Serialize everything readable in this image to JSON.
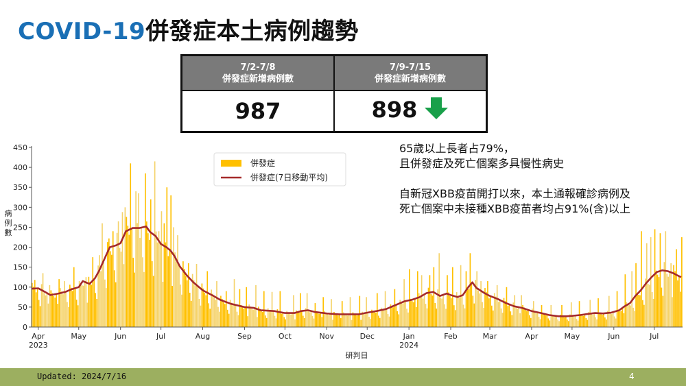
{
  "page": {
    "title_en": "COVID-19",
    "title_zh": "併發症本土病例趨勢"
  },
  "stats_table": {
    "columns": [
      {
        "range": "7/2-7/8",
        "label": "併發症新增病例數",
        "value": "987"
      },
      {
        "range": "7/9-7/15",
        "label": "併發症新增病例數",
        "value": "898",
        "trend": "down-arrow-icon",
        "trend_color": "#19a04a"
      }
    ]
  },
  "notes": {
    "line1": "65歲以上長者占79%，",
    "line2": "且併發症及死亡個案多具慢性病史",
    "line3": "自新冠XBB疫苗開打以來，本土通報確診病例及",
    "line4": "死亡個案中未接種XBB疫苗者均占91%(含)以上"
  },
  "footer": {
    "updated": "Updated: 2024/7/16",
    "page_number": "4"
  },
  "chart_data": {
    "type": "bar",
    "title": "",
    "xlabel": "研判日",
    "ylabel": "病例數",
    "ylim": [
      0,
      450
    ],
    "yticks": [
      0,
      50,
      100,
      150,
      200,
      250,
      300,
      350,
      400,
      450
    ],
    "xticks": [
      {
        "label": "Apr",
        "sub": "2023",
        "day": 5
      },
      {
        "label": "May",
        "sub": "",
        "day": 35
      },
      {
        "label": "Jun",
        "sub": "",
        "day": 66
      },
      {
        "label": "Jul",
        "sub": "",
        "day": 96
      },
      {
        "label": "Aug",
        "sub": "",
        "day": 127
      },
      {
        "label": "Sep",
        "sub": "",
        "day": 158
      },
      {
        "label": "Oct",
        "sub": "",
        "day": 188
      },
      {
        "label": "Nov",
        "sub": "",
        "day": 219
      },
      {
        "label": "Dec",
        "sub": "",
        "day": 249
      },
      {
        "label": "Jan",
        "sub": "2024",
        "day": 280
      },
      {
        "label": "Feb",
        "sub": "",
        "day": 311
      },
      {
        "label": "Mar",
        "sub": "",
        "day": 340
      },
      {
        "label": "Apr",
        "sub": "",
        "day": 371
      },
      {
        "label": "May",
        "sub": "",
        "day": 401
      },
      {
        "label": "Jun",
        "sub": "",
        "day": 432
      },
      {
        "label": "Jul",
        "sub": "",
        "day": 462
      }
    ],
    "legend": {
      "position": "upper center",
      "entries": [
        {
          "label": "併發症",
          "type": "bar",
          "color": "#ffc000"
        },
        {
          "label": "併發症(7日移動平均)",
          "type": "line",
          "color": "#a52a2a"
        }
      ]
    },
    "series": [
      {
        "name": "併發症(7日移動平均)",
        "type": "line",
        "color": "#a52a2a",
        "points_day_value": [
          [
            0,
            96
          ],
          [
            5,
            97
          ],
          [
            10,
            88
          ],
          [
            14,
            80
          ],
          [
            20,
            84
          ],
          [
            25,
            88
          ],
          [
            30,
            95
          ],
          [
            35,
            100
          ],
          [
            38,
            115
          ],
          [
            43,
            108
          ],
          [
            47,
            122
          ],
          [
            50,
            140
          ],
          [
            54,
            170
          ],
          [
            58,
            200
          ],
          [
            63,
            205
          ],
          [
            66,
            210
          ],
          [
            70,
            240
          ],
          [
            75,
            248
          ],
          [
            80,
            248
          ],
          [
            85,
            252
          ],
          [
            88,
            238
          ],
          [
            92,
            228
          ],
          [
            96,
            208
          ],
          [
            100,
            200
          ],
          [
            103,
            192
          ],
          [
            106,
            178
          ],
          [
            110,
            152
          ],
          [
            115,
            130
          ],
          [
            120,
            112
          ],
          [
            127,
            92
          ],
          [
            135,
            78
          ],
          [
            140,
            68
          ],
          [
            148,
            58
          ],
          [
            158,
            50
          ],
          [
            165,
            48
          ],
          [
            170,
            42
          ],
          [
            180,
            40
          ],
          [
            188,
            35
          ],
          [
            195,
            35
          ],
          [
            200,
            40
          ],
          [
            205,
            42
          ],
          [
            210,
            38
          ],
          [
            219,
            34
          ],
          [
            228,
            32
          ],
          [
            236,
            32
          ],
          [
            243,
            32
          ],
          [
            249,
            36
          ],
          [
            256,
            40
          ],
          [
            263,
            45
          ],
          [
            270,
            55
          ],
          [
            277,
            65
          ],
          [
            282,
            68
          ],
          [
            288,
            75
          ],
          [
            293,
            85
          ],
          [
            298,
            88
          ],
          [
            303,
            78
          ],
          [
            308,
            84
          ],
          [
            311,
            80
          ],
          [
            316,
            75
          ],
          [
            320,
            80
          ],
          [
            324,
            100
          ],
          [
            327,
            112
          ],
          [
            330,
            98
          ],
          [
            336,
            85
          ],
          [
            340,
            78
          ],
          [
            346,
            70
          ],
          [
            352,
            60
          ],
          [
            358,
            52
          ],
          [
            364,
            48
          ],
          [
            371,
            40
          ],
          [
            378,
            35
          ],
          [
            384,
            30
          ],
          [
            391,
            27
          ],
          [
            397,
            27
          ],
          [
            401,
            28
          ],
          [
            407,
            30
          ],
          [
            413,
            33
          ],
          [
            418,
            35
          ],
          [
            424,
            34
          ],
          [
            430,
            36
          ],
          [
            436,
            42
          ],
          [
            440,
            52
          ],
          [
            444,
            60
          ],
          [
            448,
            78
          ],
          [
            452,
            92
          ],
          [
            456,
            110
          ],
          [
            460,
            125
          ],
          [
            464,
            138
          ],
          [
            468,
            142
          ],
          [
            472,
            140
          ],
          [
            476,
            135
          ],
          [
            480,
            128
          ],
          [
            482,
            125
          ]
        ]
      },
      {
        "name": "併發症",
        "type": "bar",
        "color": "#ffc000",
        "alt_color": "#f5d36b",
        "peaks_day_value": [
          [
            2,
            118
          ],
          [
            8,
            135
          ],
          [
            13,
            105
          ],
          [
            20,
            120
          ],
          [
            24,
            115
          ],
          [
            31,
            150
          ],
          [
            40,
            125
          ],
          [
            45,
            175
          ],
          [
            50,
            180
          ],
          [
            52,
            260
          ],
          [
            57,
            222
          ],
          [
            60,
            240
          ],
          [
            64,
            265
          ],
          [
            67,
            288
          ],
          [
            69,
            300
          ],
          [
            73,
            410
          ],
          [
            77,
            340
          ],
          [
            79,
            335
          ],
          [
            84,
            385
          ],
          [
            88,
            320
          ],
          [
            91,
            415
          ],
          [
            94,
            240
          ],
          [
            96,
            290
          ],
          [
            98,
            260
          ],
          [
            100,
            350
          ],
          [
            103,
            330
          ],
          [
            105,
            250
          ],
          [
            108,
            230
          ],
          [
            116,
            160
          ],
          [
            122,
            158
          ],
          [
            130,
            140
          ],
          [
            137,
            115
          ],
          [
            144,
            90
          ],
          [
            150,
            120
          ],
          [
            154,
            95
          ],
          [
            159,
            100
          ],
          [
            166,
            105
          ],
          [
            172,
            90
          ],
          [
            178,
            88
          ],
          [
            184,
            90
          ],
          [
            194,
            80
          ],
          [
            199,
            85
          ],
          [
            204,
            85
          ],
          [
            210,
            60
          ],
          [
            216,
            75
          ],
          [
            222,
            70
          ],
          [
            230,
            65
          ],
          [
            236,
            75
          ],
          [
            243,
            78
          ],
          [
            248,
            75
          ],
          [
            256,
            85
          ],
          [
            262,
            90
          ],
          [
            269,
            95
          ],
          [
            276,
            120
          ],
          [
            280,
            145
          ],
          [
            286,
            140
          ],
          [
            289,
            130
          ],
          [
            295,
            130
          ],
          [
            298,
            150
          ],
          [
            302,
            185
          ],
          [
            308,
            130
          ],
          [
            312,
            150
          ],
          [
            318,
            155
          ],
          [
            322,
            140
          ],
          [
            325,
            185
          ],
          [
            330,
            140
          ],
          [
            333,
            115
          ],
          [
            338,
            115
          ],
          [
            345,
            105
          ],
          [
            352,
            100
          ],
          [
            358,
            80
          ],
          [
            363,
            80
          ],
          [
            372,
            65
          ],
          [
            378,
            55
          ],
          [
            385,
            55
          ],
          [
            393,
            55
          ],
          [
            400,
            62
          ],
          [
            406,
            65
          ],
          [
            414,
            68
          ],
          [
            420,
            72
          ],
          [
            428,
            78
          ],
          [
            434,
            90
          ],
          [
            440,
            132
          ],
          [
            445,
            140
          ],
          [
            448,
            160
          ],
          [
            452,
            240
          ],
          [
            456,
            210
          ],
          [
            459,
            225
          ],
          [
            462,
            245
          ],
          [
            466,
            235
          ],
          [
            470,
            240
          ],
          [
            474,
            160
          ],
          [
            478,
            195
          ],
          [
            482,
            225
          ]
        ]
      }
    ]
  }
}
